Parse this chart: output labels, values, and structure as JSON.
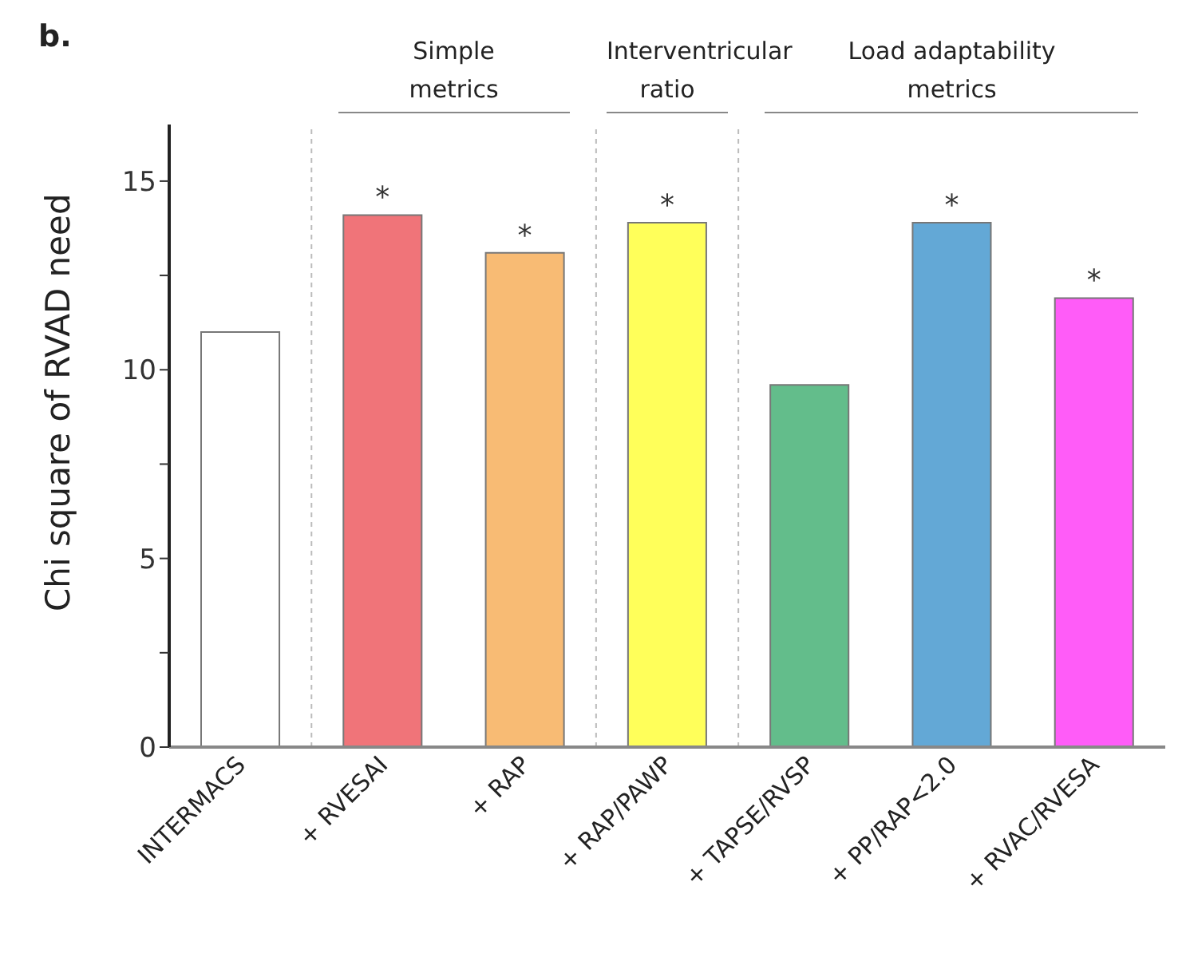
{
  "chart_data": {
    "type": "bar",
    "ylabel": "Chi square of RVAD need",
    "categories": [
      "INTERMACS",
      "+ RVESAI",
      "+ RAP",
      "+ RAP/PAWP",
      "+ TAPSE/RVSP",
      "+ PP/RAP<2.0",
      "+ RVAC/RVESA"
    ],
    "values": [
      11.0,
      14.1,
      13.1,
      13.9,
      9.6,
      13.9,
      11.9
    ],
    "colors": [
      "#ffffff",
      "#f07479",
      "#f8bb74",
      "#ffff5a",
      "#63bd8b",
      "#63a8d6",
      "#ff5cf8"
    ],
    "value_labels": [
      null,
      "*",
      "*",
      "*",
      null,
      "*",
      "*"
    ],
    "ylim": [
      0,
      16.5
    ],
    "yticks": [
      0,
      {
        "value": 2.5,
        "label": null
      },
      5,
      {
        "value": 7.5,
        "label": null
      },
      10,
      {
        "value": 12.5,
        "label": null
      },
      15
    ],
    "annotations": [
      "b.",
      "Simple metrics",
      "Interventricular ratio",
      "Load adaptability metrics"
    ],
    "grid": false,
    "legend": false
  }
}
